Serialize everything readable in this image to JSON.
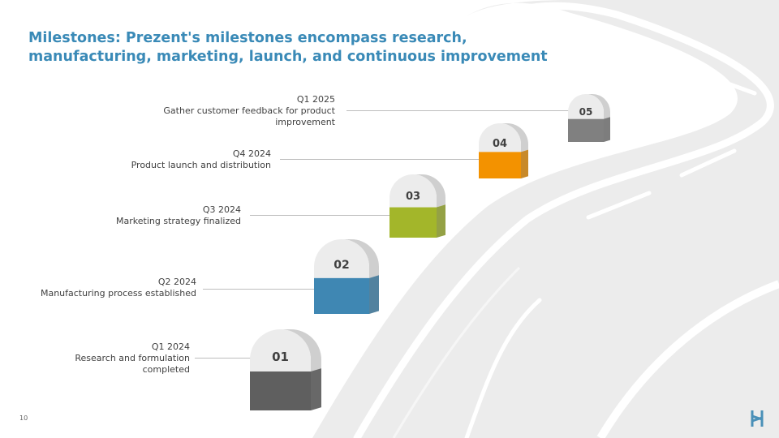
{
  "slide": {
    "title": "Milestones: Prezent's milestones encompass research, manufacturing, marketing, launch, and continuous improvement",
    "page_number": "10",
    "accent_color": "#3a8ab7"
  },
  "milestones": [
    {
      "number": "01",
      "date": "Q1 2024",
      "description": "Research and formulation completed",
      "color": "#5f5f5f"
    },
    {
      "number": "02",
      "date": "Q2 2024",
      "description": "Manufacturing process established",
      "color": "#3f87b3"
    },
    {
      "number": "03",
      "date": "Q3 2024",
      "description": "Marketing strategy finalized",
      "color": "#a3b62a"
    },
    {
      "number": "04",
      "date": "Q4 2024",
      "description": "Product launch and distribution",
      "color": "#f39200"
    },
    {
      "number": "05",
      "date": "Q1 2025",
      "description": "Gather customer feedback for product improvement",
      "color": "#808080"
    }
  ],
  "logo": {
    "icon": "brand-logo-icon",
    "color": "#4a90b8"
  }
}
